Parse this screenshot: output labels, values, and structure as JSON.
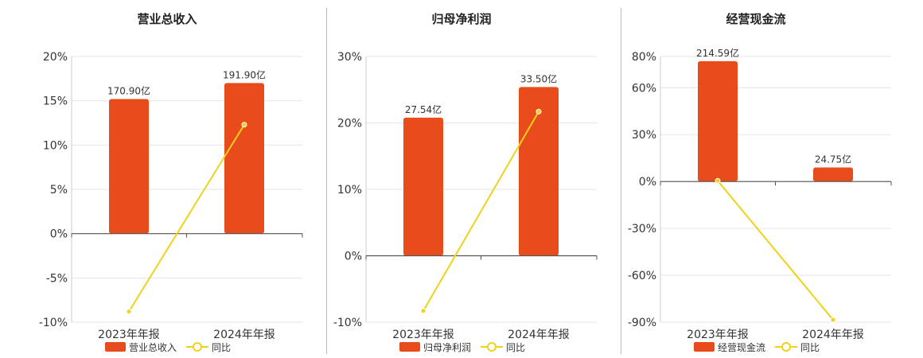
{
  "chart_data": [
    {
      "type": "bar",
      "title": "营业总收入",
      "categories": [
        "2023年年报",
        "2024年年报"
      ],
      "series": [
        {
          "name": "营业总收入",
          "type": "bar",
          "labels": [
            "170.90亿",
            "191.90亿"
          ],
          "values": [
            15.2,
            17.0
          ]
        },
        {
          "name": "同比",
          "type": "line",
          "values": [
            -8.8,
            12.3
          ]
        }
      ],
      "yticks": [
        "20%",
        "15%",
        "10%",
        "5%",
        "0%",
        "-5%",
        "-10%"
      ],
      "ylim": [
        -10,
        20
      ],
      "colors": {
        "bar": "#e84c1c",
        "line": "#f0d21a"
      },
      "grid": true
    },
    {
      "type": "bar",
      "title": "归母净利润",
      "categories": [
        "2023年年报",
        "2024年年报"
      ],
      "series": [
        {
          "name": "归母净利润",
          "type": "bar",
          "labels": [
            "27.54亿",
            "33.50亿"
          ],
          "values": [
            20.8,
            25.4
          ]
        },
        {
          "name": "同比",
          "type": "line",
          "values": [
            -8.3,
            21.7
          ]
        }
      ],
      "yticks": [
        "30%",
        "20%",
        "10%",
        "0%",
        "-10%"
      ],
      "ylim": [
        -10,
        30
      ],
      "colors": {
        "bar": "#e84c1c",
        "line": "#f0d21a"
      },
      "grid": true
    },
    {
      "type": "bar",
      "title": "经营现金流",
      "categories": [
        "2023年年报",
        "2024年年报"
      ],
      "series": [
        {
          "name": "经营现金流",
          "type": "bar",
          "labels": [
            "214.59亿",
            "24.75亿"
          ],
          "values": [
            77.0,
            9.0
          ]
        },
        {
          "name": "同比",
          "type": "line",
          "values": [
            0.5,
            -88.5
          ]
        }
      ],
      "yticks": [
        "80%",
        "60%",
        "30%",
        "0%",
        "-30%",
        "-60%",
        "-90%"
      ],
      "ylim": [
        -90,
        80
      ],
      "colors": {
        "bar": "#e84c1c",
        "line": "#f0d21a"
      },
      "grid": true
    }
  ]
}
